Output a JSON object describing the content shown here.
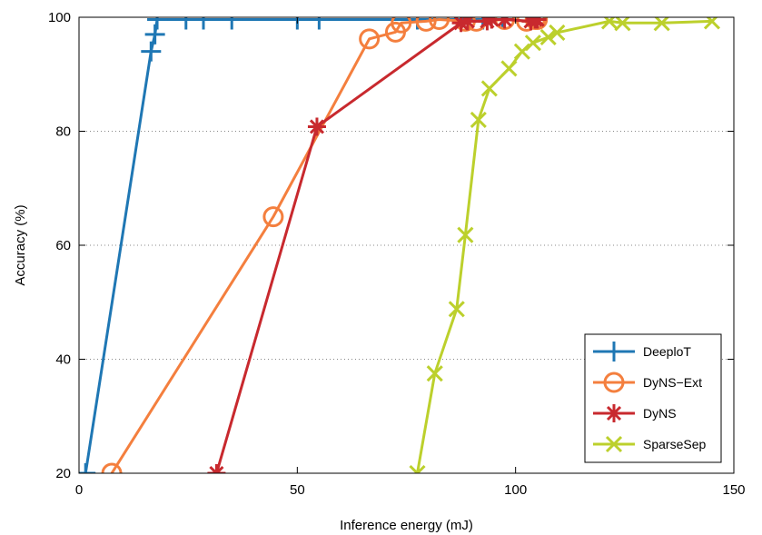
{
  "chart_data": {
    "type": "line",
    "xlabel": "Inference energy (mJ)",
    "ylabel": "Accuracy (%)",
    "xlim": [
      0,
      150
    ],
    "ylim": [
      20,
      100
    ],
    "xticks": [
      0,
      50,
      100,
      150
    ],
    "yticks": [
      20,
      40,
      60,
      80,
      100
    ],
    "grid": "horizontal dotted",
    "legend_position": "bottom-right",
    "series": [
      {
        "name": "DeeploT",
        "color": "#1f77b4",
        "marker": "plus",
        "x": [
          1.5,
          16.5,
          17.4,
          17.9,
          24.5,
          28.5,
          35.0,
          50.0,
          55.0,
          77.5,
          92.5,
          97.0
        ],
        "y": [
          20,
          94,
          97,
          99.6,
          99.6,
          99.6,
          99.6,
          99.6,
          99.6,
          99.6,
          99.6,
          99.6
        ]
      },
      {
        "name": "DyNS−Ext",
        "color": "#f47f3e",
        "marker": "circle",
        "x": [
          7.5,
          44.5,
          66.5,
          72.5,
          73.8,
          79.5,
          82.5,
          88.5,
          91.0,
          97.5,
          102.5,
          104.5,
          105.0
        ],
        "y": [
          20,
          65,
          96.2,
          97.4,
          99,
          99.3,
          99.6,
          99.3,
          99.3,
          99.6,
          99.3,
          99.6,
          99.6
        ]
      },
      {
        "name": "DyNS",
        "color": "#c8292e",
        "marker": "asterisk",
        "x": [
          31.5,
          54.5,
          87.5,
          89.0,
          93.5,
          94.5,
          97.5,
          103.5,
          104.5,
          105.0
        ],
        "y": [
          20,
          80.8,
          99,
          99.3,
          99.3,
          99.6,
          99.6,
          99.3,
          99.6,
          99.6
        ]
      },
      {
        "name": "SparseSep",
        "color": "#bcd02c",
        "marker": "x",
        "x": [
          77.5,
          81.5,
          86.5,
          88.5,
          91.5,
          94.0,
          98.5,
          101.5,
          104.0,
          107.5,
          109.5,
          121.5,
          124.5,
          133.5,
          145.0
        ],
        "y": [
          20,
          37.5,
          48.8,
          61.8,
          82,
          87.5,
          91,
          94,
          95.5,
          96.5,
          97.3,
          99.3,
          99,
          99,
          99.3
        ]
      }
    ]
  }
}
